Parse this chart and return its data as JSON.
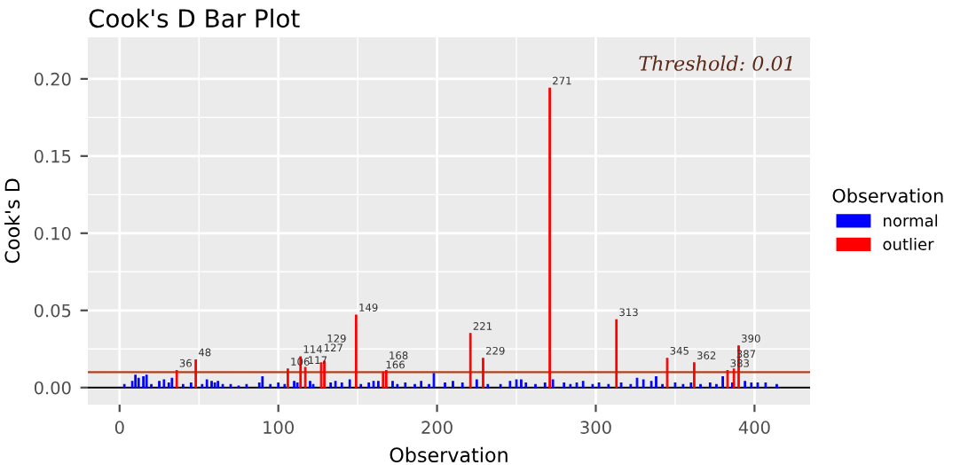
{
  "chart_data": {
    "type": "bar",
    "title": "Cook's D Bar Plot",
    "xlabel": "Observation",
    "ylabel": "Cook's D",
    "legend_title": "Observation",
    "xlim": [
      -20,
      435
    ],
    "xticks": [
      0,
      100,
      200,
      300,
      400
    ],
    "ylim": [
      -0.011,
      0.227
    ],
    "yticks": [
      {
        "value": 0,
        "label": "0.00"
      },
      {
        "value": 0.05,
        "label": "0.05"
      },
      {
        "value": 0.1,
        "label": "0.10"
      },
      {
        "value": 0.15,
        "label": "0.15"
      },
      {
        "value": 0.2,
        "label": "0.20"
      }
    ],
    "grid": true,
    "legend": "right",
    "ref_lines": [
      {
        "axis": "y",
        "value": 0.01,
        "color": "#b2401a"
      },
      {
        "axis": "y",
        "value": 0,
        "color": "#000000"
      }
    ],
    "annotations": [
      "Threshold: 0.01",
      {
        "text": "36",
        "x": 36,
        "y": 0.011
      },
      {
        "text": "48",
        "x": 48,
        "y": 0.018
      },
      {
        "text": "106",
        "x": 106,
        "y": 0.012
      },
      {
        "text": "114",
        "x": 114,
        "y": 0.02
      },
      {
        "text": "117",
        "x": 117,
        "y": 0.013
      },
      {
        "text": "127",
        "x": 127,
        "y": 0.016
      },
      {
        "text": "129",
        "x": 129,
        "y": 0.017
      },
      {
        "text": "149",
        "x": 149,
        "y": 0.047
      },
      {
        "text": "166",
        "x": 166,
        "y": 0.01
      },
      {
        "text": "168",
        "x": 168,
        "y": 0.011
      },
      {
        "text": "221",
        "x": 221,
        "y": 0.035
      },
      {
        "text": "229",
        "x": 229,
        "y": 0.019
      },
      {
        "text": "271",
        "x": 271,
        "y": 0.194
      },
      {
        "text": "313",
        "x": 313,
        "y": 0.044
      },
      {
        "text": "345",
        "x": 345,
        "y": 0.019
      },
      {
        "text": "362",
        "x": 362,
        "y": 0.016
      },
      {
        "text": "383",
        "x": 383,
        "y": 0.011
      },
      {
        "text": "387",
        "x": 387,
        "y": 0.012
      },
      {
        "text": "390",
        "x": 390,
        "y": 0.027
      }
    ],
    "series": [
      {
        "name": "normal",
        "color": "#0000ff",
        "x": [
          3,
          8,
          10,
          12,
          15,
          17,
          20,
          25,
          28,
          31,
          33,
          40,
          45,
          52,
          55,
          58,
          60,
          62,
          65,
          70,
          75,
          80,
          88,
          90,
          95,
          100,
          104,
          110,
          112,
          120,
          122,
          133,
          136,
          140,
          145,
          152,
          157,
          160,
          163,
          172,
          175,
          180,
          186,
          190,
          195,
          198,
          205,
          210,
          216,
          225,
          232,
          240,
          246,
          250,
          253,
          256,
          262,
          268,
          273,
          280,
          284,
          288,
          292,
          298,
          302,
          308,
          316,
          322,
          326,
          330,
          335,
          338,
          342,
          350,
          355,
          360,
          366,
          372,
          376,
          380,
          386,
          394,
          398,
          402,
          407,
          414
        ],
        "values": [
          0.002,
          0.004,
          0.008,
          0.006,
          0.007,
          0.008,
          0.002,
          0.004,
          0.005,
          0.003,
          0.006,
          0.002,
          0.003,
          0.002,
          0.005,
          0.004,
          0.003,
          0.004,
          0.002,
          0.002,
          0.001,
          0.002,
          0.003,
          0.007,
          0.002,
          0.003,
          0.002,
          0.004,
          0.003,
          0.004,
          0.002,
          0.003,
          0.004,
          0.003,
          0.005,
          0.002,
          0.003,
          0.004,
          0.004,
          0.004,
          0.002,
          0.003,
          0.002,
          0.004,
          0.002,
          0.009,
          0.003,
          0.004,
          0.003,
          0.005,
          0.002,
          0.002,
          0.004,
          0.005,
          0.005,
          0.003,
          0.002,
          0.003,
          0.005,
          0.003,
          0.002,
          0.003,
          0.004,
          0.002,
          0.003,
          0.002,
          0.003,
          0.002,
          0.006,
          0.005,
          0.004,
          0.007,
          0.002,
          0.003,
          0.002,
          0.003,
          0.002,
          0.003,
          0.002,
          0.007,
          0.003,
          0.004,
          0.003,
          0.003,
          0.003,
          0.002
        ]
      },
      {
        "name": "outlier",
        "color": "#ff0000",
        "x": [
          36,
          48,
          106,
          114,
          117,
          127,
          129,
          149,
          166,
          168,
          221,
          229,
          271,
          313,
          345,
          362,
          383,
          387,
          390
        ],
        "values": [
          0.011,
          0.018,
          0.012,
          0.02,
          0.013,
          0.016,
          0.017,
          0.047,
          0.01,
          0.011,
          0.035,
          0.019,
          0.194,
          0.044,
          0.019,
          0.016,
          0.011,
          0.012,
          0.027
        ]
      }
    ]
  }
}
